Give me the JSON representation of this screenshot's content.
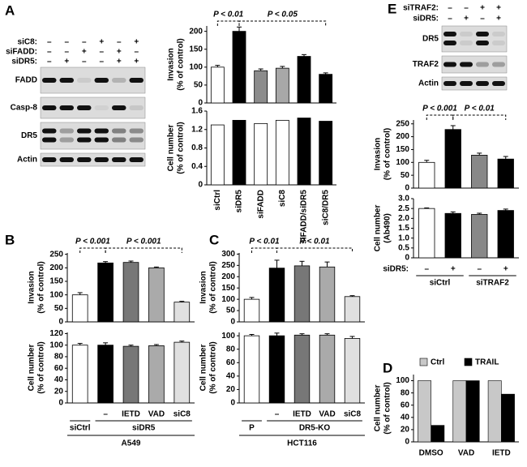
{
  "panel_labels": [
    "A",
    "B",
    "C",
    "D",
    "E"
  ],
  "blot_A": {
    "rows": [
      {
        "label": "siC8:",
        "signs": [
          "–",
          "–",
          "–",
          "+",
          "–",
          "+"
        ]
      },
      {
        "label": "siFADD:",
        "signs": [
          "–",
          "–",
          "+",
          "–",
          "+",
          "–"
        ]
      },
      {
        "label": "siDR5:",
        "signs": [
          "–",
          "+",
          "–",
          "–",
          "+",
          "+"
        ]
      }
    ],
    "bands": [
      "FADD",
      "Casp-8",
      "DR5",
      "Actin"
    ]
  },
  "blot_E": {
    "rows": [
      {
        "label": "siTRAF2:",
        "signs": [
          "–",
          "–",
          "+",
          "+"
        ]
      },
      {
        "label": "siDR5:",
        "signs": [
          "–",
          "+",
          "–",
          "+"
        ]
      }
    ],
    "bands": [
      "DR5",
      "TRAF2",
      "Actin"
    ]
  },
  "chart_data": [
    {
      "type": "bar",
      "ylabel": [
        "Invasion",
        "(% of control)"
      ],
      "values": [
        100,
        200,
        90,
        97,
        130,
        80
      ],
      "errors": [
        5,
        12,
        5,
        5,
        5,
        4
      ],
      "colors": [
        "#ffffff",
        "#000000",
        "#8c8c8c",
        "#a8a8a8",
        "#000000",
        "#000000"
      ],
      "ylim": [
        0,
        215
      ],
      "yticks": [
        0,
        50,
        100,
        150,
        200
      ],
      "annotations": [
        "P < 0.01",
        "P < 0.05"
      ]
    },
    {
      "type": "bar",
      "ylabel": [
        "Cell number",
        "(% of control)"
      ],
      "categories": [
        "siCtrl",
        "siDR5",
        "siFADD",
        "siC8",
        "siFADD/siDR5",
        "siC8/DR5"
      ],
      "values": [
        1.3,
        1.4,
        1.33,
        1.4,
        1.45,
        1.38
      ],
      "colors": [
        "#ffffff",
        "#000000",
        "#ffffff",
        "#ffffff",
        "#000000",
        "#000000"
      ],
      "ylim": [
        0,
        1.6
      ],
      "yticks": [
        0,
        0.4,
        0.8,
        1.2,
        1.6
      ]
    },
    {
      "type": "bar",
      "ylabel": [
        "Invasion",
        "(% of control)"
      ],
      "values": [
        100,
        218,
        220,
        200,
        73
      ],
      "errors": [
        8,
        5,
        5,
        3,
        3
      ],
      "colors": [
        "#ffffff",
        "#000000",
        "#777777",
        "#aaaaaa",
        "#e0e0e0"
      ],
      "ylim": [
        0,
        255
      ],
      "yticks": [
        0,
        50,
        100,
        150,
        200,
        250
      ],
      "annotations": [
        "P < 0.001",
        "P < 0.001"
      ]
    },
    {
      "type": "bar",
      "ylabel": [
        "Cell number",
        "(% of control)"
      ],
      "categories": [
        null,
        "–",
        "IETD",
        "VAD",
        "siC8"
      ],
      "groups": [
        "siCtrl",
        "siDR5"
      ],
      "cell_line": "A549",
      "values": [
        100,
        100,
        98,
        99,
        105
      ],
      "errors": [
        3,
        4,
        2,
        2,
        2
      ],
      "colors": [
        "#ffffff",
        "#000000",
        "#777777",
        "#aaaaaa",
        "#e0e0e0"
      ],
      "ylim": [
        0,
        122
      ],
      "yticks": [
        0,
        20,
        40,
        60,
        80,
        100,
        120
      ]
    },
    {
      "type": "bar",
      "ylabel": [
        "Invasion",
        "(% of control)"
      ],
      "values": [
        100,
        238,
        248,
        243,
        112
      ],
      "errors": [
        8,
        35,
        20,
        22,
        4
      ],
      "colors": [
        "#ffffff",
        "#000000",
        "#777777",
        "#aaaaaa",
        "#e0e0e0"
      ],
      "ylim": [
        0,
        305
      ],
      "yticks": [
        0,
        50,
        100,
        150,
        200,
        250,
        300
      ],
      "annotations": [
        "P < 0.01",
        "P < 0.01"
      ]
    },
    {
      "type": "bar",
      "ylabel": [
        "Cell number",
        "(% of control)"
      ],
      "categories": [
        null,
        "–",
        "IETD",
        "VAD",
        "siC8"
      ],
      "groups": [
        "P",
        "DR5-KO"
      ],
      "cell_line": "HCT116",
      "values": [
        100,
        100,
        101,
        101,
        96
      ],
      "errors": [
        2,
        4,
        2,
        2,
        3
      ],
      "colors": [
        "#ffffff",
        "#000000",
        "#777777",
        "#aaaaaa",
        "#e0e0e0"
      ],
      "ylim": [
        0,
        105
      ],
      "yticks": [
        0,
        20,
        40,
        60,
        80,
        100
      ]
    },
    {
      "type": "bar",
      "ylabel": [
        "Invasion",
        "(% of control)"
      ],
      "values": [
        100,
        228,
        128,
        113
      ],
      "errors": [
        8,
        15,
        8,
        10
      ],
      "colors": [
        "#ffffff",
        "#000000",
        "#888888",
        "#000000"
      ],
      "ylim": [
        0,
        265
      ],
      "yticks": [
        0,
        50,
        100,
        150,
        200,
        250
      ],
      "annotations": [
        "P < 0.001",
        "P < 0.01"
      ]
    },
    {
      "type": "bar",
      "ylabel": [
        "Cell number",
        "(Ab490)"
      ],
      "categories_label": "siDR5:",
      "categories": [
        "–",
        "+",
        "–",
        "+"
      ],
      "groups": [
        "siCtrl",
        "siTRAF2"
      ],
      "values": [
        2.5,
        2.25,
        2.2,
        2.4
      ],
      "errors": [
        0.03,
        0.08,
        0.06,
        0.07
      ],
      "colors": [
        "#ffffff",
        "#000000",
        "#888888",
        "#000000"
      ],
      "ylim": [
        0,
        3
      ],
      "yticks": [
        0,
        0.5,
        {
          "value": 1,
          "label": "1.0"
        },
        1.5,
        {
          "value": 2,
          "label": "2.0"
        },
        2.5,
        {
          "value": 3,
          "label": "3.0"
        }
      ]
    },
    {
      "type": "grouped_bar",
      "ylabel": [
        "Cell number",
        "(% of control)"
      ],
      "categories": [
        "DMSO",
        "VAD",
        "IETD"
      ],
      "series": [
        {
          "name": "Ctrl",
          "color": "#c8c8c8",
          "values": [
            100,
            100,
            100
          ]
        },
        {
          "name": "TRAIL",
          "color": "#000000",
          "values": [
            27,
            100,
            78
          ]
        }
      ],
      "ylim": [
        0,
        110
      ],
      "yticks": [
        0,
        20,
        40,
        60,
        80,
        100
      ]
    }
  ]
}
